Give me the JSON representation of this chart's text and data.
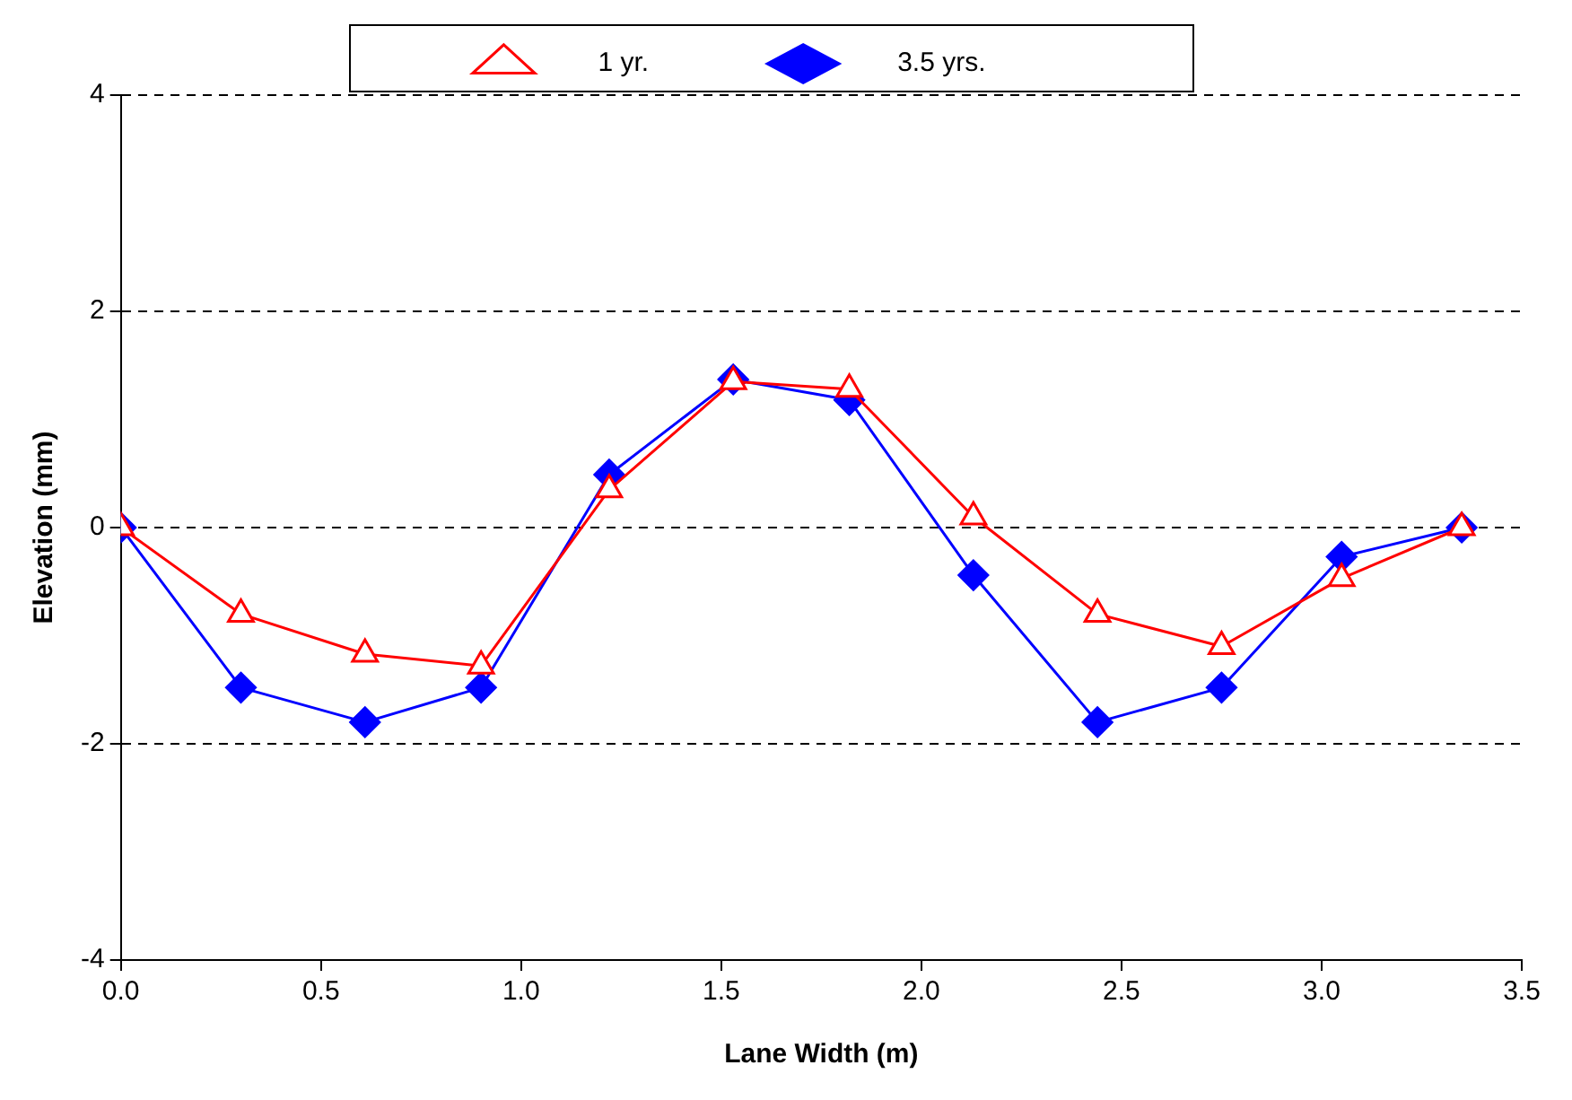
{
  "chart_data": {
    "type": "line",
    "xlabel": "Lane Width (m)",
    "ylabel": "Elevation (mm)",
    "x": [
      0,
      0.3,
      0.61,
      0.9,
      1.22,
      1.53,
      1.82,
      2.13,
      2.44,
      2.75,
      3.05,
      3.35
    ],
    "series": [
      {
        "name": "1 yr.",
        "color": "#ff0000",
        "marker": "triangle",
        "values": [
          0,
          -0.8,
          -1.17,
          -1.28,
          0.35,
          1.35,
          1.28,
          0.1,
          -0.8,
          -1.1,
          -0.47,
          0
        ]
      },
      {
        "name": "3.5 yrs.",
        "color": "#0000ff",
        "marker": "diamond",
        "values": [
          0,
          -1.48,
          -1.8,
          -1.48,
          0.49,
          1.37,
          1.18,
          -0.44,
          -1.8,
          -1.48,
          -0.27,
          0
        ]
      }
    ],
    "xlim": [
      0,
      3.5
    ],
    "xticks": [
      {
        "value": 0,
        "label": "0.0"
      },
      {
        "value": 0.5,
        "label": "0.5"
      },
      {
        "value": 1,
        "label": "1.0"
      },
      {
        "value": 1.5,
        "label": "1.5"
      },
      {
        "value": 2,
        "label": "2.0"
      },
      {
        "value": 2.5,
        "label": "2.5"
      },
      {
        "value": 3,
        "label": "3.0"
      },
      {
        "value": 3.5,
        "label": "3.5"
      }
    ],
    "ylim": [
      -4,
      4
    ],
    "yticks": [
      -4,
      -2,
      0,
      2,
      4
    ],
    "grid": "y",
    "legend": "top",
    "line_style": "solid"
  }
}
